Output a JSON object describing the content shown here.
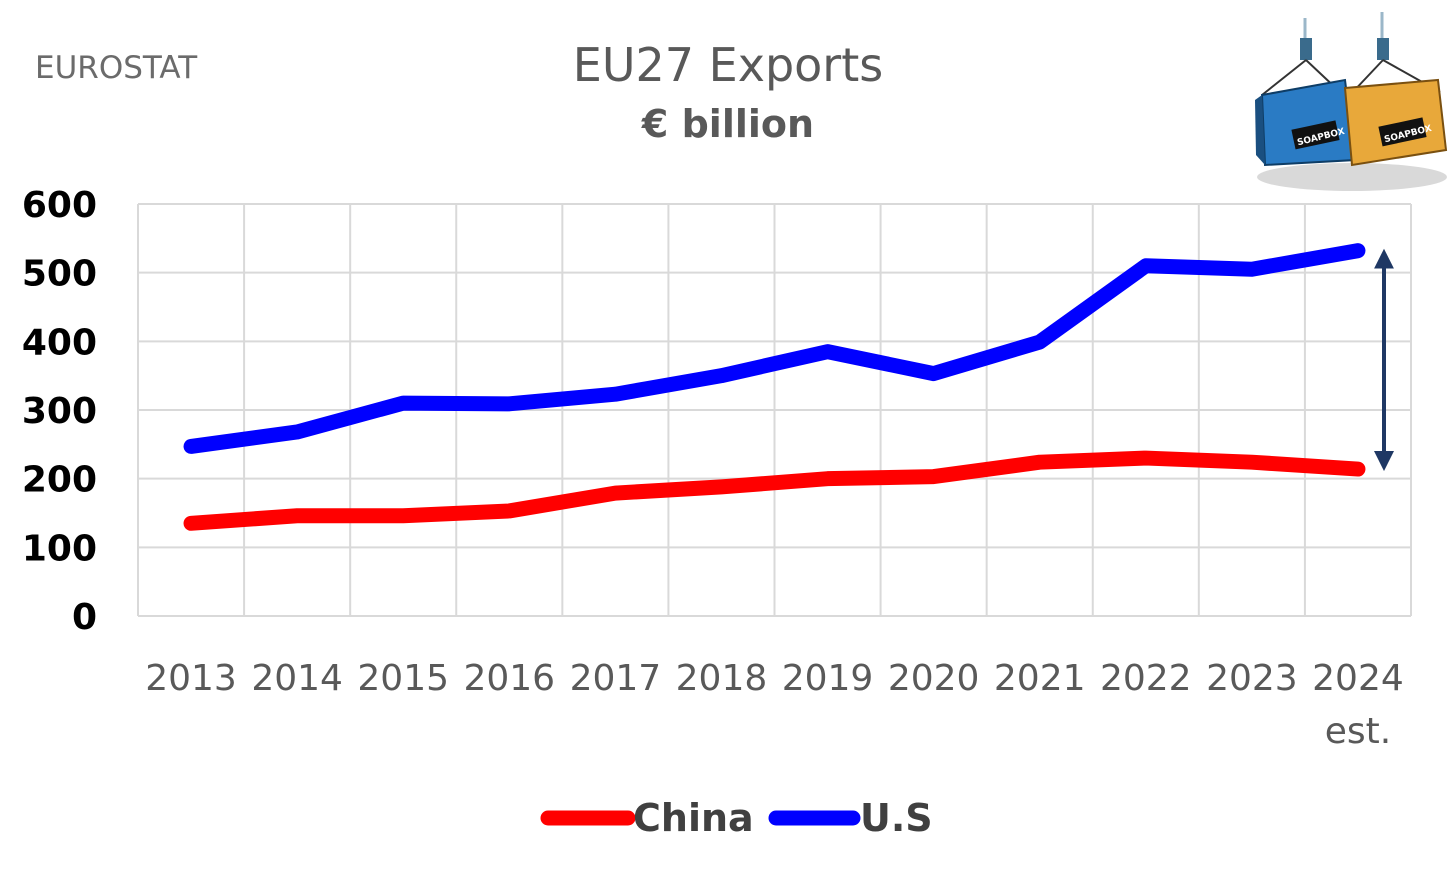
{
  "source": "EUROSTAT",
  "chart_data": {
    "type": "line",
    "title": "EU27 Exports",
    "subtitle": "€ billion",
    "xlabel": "",
    "ylabel": "",
    "categories": [
      "2013",
      "2014",
      "2015",
      "2016",
      "2017",
      "2018",
      "2019",
      "2020",
      "2021",
      "2022",
      "2023",
      "2024"
    ],
    "category_sublabels": [
      "",
      "",
      "",
      "",
      "",
      "",
      "",
      "",
      "",
      "",
      "",
      "est."
    ],
    "yticks": [
      "0",
      "100",
      "200",
      "300",
      "400",
      "500",
      "600"
    ],
    "ylim": [
      0,
      600
    ],
    "grid": true,
    "legend_position": "bottom",
    "series": [
      {
        "name": "China",
        "color": "#ff0000",
        "values": [
          135,
          146,
          146,
          153,
          179,
          188,
          200,
          203,
          224,
          230,
          224,
          214
        ]
      },
      {
        "name": "U.S",
        "color": "#0000ff",
        "values": [
          247,
          268,
          310,
          309,
          323,
          350,
          385,
          353,
          399,
          510,
          505,
          532
        ]
      }
    ],
    "annotation": {
      "type": "double-arrow",
      "between_series": [
        "U.S",
        "China"
      ],
      "at_category": "2024",
      "color": "#1f3864"
    }
  },
  "logo": {
    "container_left_text": "SOAPBOX",
    "container_right_text": "SOAPBOX"
  }
}
